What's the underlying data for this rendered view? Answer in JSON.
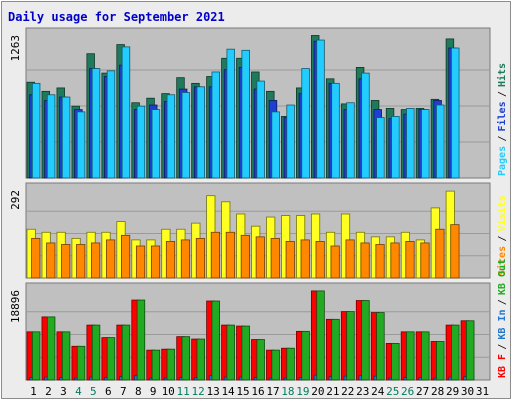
{
  "title": "Daily usage for September 2021",
  "colors": {
    "title": "#0000c8",
    "panel_bg": "#c0c0c0",
    "hits": "#1f7a5c",
    "files": "#1f3fd0",
    "pages": "#22ccff",
    "visits": "#ffff22",
    "sites": "#ff8800",
    "kb_f": "#ff0000",
    "kb_in": "#2277cc",
    "kb_out": "#22aa22"
  },
  "legends": {
    "top": [
      {
        "label": "Hits",
        "color": "#1f7a5c"
      },
      {
        "label": "Files",
        "color": "#1f3fd0"
      },
      {
        "label": "Pages",
        "color": "#22ccff"
      }
    ],
    "middle": [
      {
        "label": "Visits",
        "color": "#ffff22"
      },
      {
        "label": "Sites",
        "color": "#ff8800"
      }
    ],
    "bottom": [
      {
        "label": "KB Out",
        "color": "#22aa22"
      },
      {
        "label": "KB In",
        "color": "#2277cc"
      },
      {
        "label": "KB F",
        "color": "#ff0000"
      }
    ]
  },
  "chart_data": [
    {
      "type": "bar",
      "panel": "top",
      "ymax_label": "1263",
      "ylim": [
        0,
        1263
      ],
      "categories": [
        "1",
        "2",
        "3",
        "4",
        "5",
        "6",
        "7",
        "8",
        "9",
        "10",
        "11",
        "12",
        "13",
        "14",
        "15",
        "16",
        "17",
        "18",
        "19",
        "20",
        "21",
        "22",
        "23",
        "24",
        "25",
        "26",
        "27",
        "28",
        "29",
        "30",
        "31"
      ],
      "series": [
        {
          "name": "Hits",
          "values": [
            840,
            760,
            790,
            630,
            1090,
            920,
            1170,
            660,
            700,
            740,
            880,
            830,
            890,
            1050,
            1050,
            930,
            760,
            540,
            790,
            1250,
            870,
            650,
            970,
            680,
            610,
            600,
            610,
            690,
            1220,
            null,
            null
          ]
        },
        {
          "name": "Files",
          "values": [
            730,
            680,
            710,
            600,
            960,
            890,
            990,
            600,
            640,
            670,
            780,
            800,
            800,
            950,
            970,
            780,
            680,
            530,
            740,
            1200,
            830,
            600,
            870,
            600,
            520,
            560,
            600,
            680,
            1140,
            null,
            null
          ]
        },
        {
          "name": "Pages",
          "values": [
            830,
            730,
            710,
            580,
            960,
            940,
            1150,
            630,
            600,
            730,
            750,
            800,
            930,
            1130,
            1120,
            850,
            580,
            640,
            960,
            1210,
            830,
            660,
            920,
            530,
            540,
            610,
            600,
            640,
            1140,
            null,
            null
          ]
        }
      ]
    },
    {
      "type": "bar",
      "panel": "middle",
      "ymax_label": "292",
      "ylim": [
        0,
        292
      ],
      "categories": [
        "1",
        "2",
        "3",
        "4",
        "5",
        "6",
        "7",
        "8",
        "9",
        "10",
        "11",
        "12",
        "13",
        "14",
        "15",
        "16",
        "17",
        "18",
        "19",
        "20",
        "21",
        "22",
        "23",
        "24",
        "25",
        "26",
        "27",
        "28",
        "29",
        "30",
        "31"
      ],
      "series": [
        {
          "name": "Visits",
          "values": [
            160,
            150,
            150,
            130,
            150,
            150,
            185,
            125,
            125,
            160,
            160,
            180,
            270,
            250,
            210,
            170,
            200,
            205,
            205,
            210,
            150,
            210,
            150,
            135,
            135,
            150,
            125,
            230,
            285,
            null,
            null
          ]
        },
        {
          "name": "Sites",
          "values": [
            130,
            115,
            110,
            110,
            115,
            125,
            140,
            105,
            105,
            120,
            125,
            130,
            150,
            150,
            140,
            135,
            130,
            120,
            125,
            120,
            105,
            125,
            115,
            110,
            115,
            120,
            115,
            160,
            175,
            null,
            null
          ]
        }
      ]
    },
    {
      "type": "bar",
      "panel": "bottom",
      "ymax_label": "18896",
      "ylim": [
        0,
        18896
      ],
      "categories": [
        "1",
        "2",
        "3",
        "4",
        "5",
        "6",
        "7",
        "8",
        "9",
        "10",
        "11",
        "12",
        "13",
        "14",
        "15",
        "16",
        "17",
        "18",
        "19",
        "20",
        "21",
        "22",
        "23",
        "24",
        "25",
        "26",
        "27",
        "28",
        "29",
        "30",
        "31"
      ],
      "series": [
        {
          "name": "KB F",
          "values": [
            10000,
            13100,
            10000,
            7000,
            11400,
            8800,
            11400,
            16600,
            6200,
            6400,
            9000,
            8500,
            16400,
            11400,
            11200,
            8400,
            6200,
            6600,
            10100,
            18500,
            12600,
            14200,
            16500,
            14000,
            7600,
            10000,
            10000,
            8000,
            11400,
            12300,
            null
          ]
        },
        {
          "name": "KB In",
          "values": [
            500,
            600,
            500,
            400,
            600,
            500,
            700,
            900,
            400,
            400,
            500,
            500,
            900,
            600,
            600,
            500,
            400,
            400,
            500,
            1000,
            700,
            800,
            900,
            800,
            400,
            500,
            500,
            400,
            600,
            700,
            null
          ]
        },
        {
          "name": "KB Out",
          "values": [
            10000,
            13100,
            10000,
            7000,
            11400,
            8800,
            11400,
            16600,
            6200,
            6400,
            9000,
            8500,
            16400,
            11400,
            11200,
            8400,
            6200,
            6600,
            10100,
            18500,
            12600,
            14200,
            16500,
            14000,
            7600,
            10000,
            10000,
            8000,
            11400,
            12300,
            null
          ]
        }
      ]
    }
  ],
  "day_labels": [
    "1",
    "2",
    "3",
    "4",
    "5",
    "6",
    "7",
    "8",
    "9",
    "10",
    "11",
    "12",
    "13",
    "14",
    "15",
    "16",
    "17",
    "18",
    "19",
    "20",
    "21",
    "22",
    "23",
    "24",
    "25",
    "26",
    "27",
    "28",
    "29",
    "30",
    "31"
  ],
  "weekend_days": [
    "4",
    "5",
    "11",
    "12",
    "18",
    "19",
    "25",
    "26"
  ],
  "weekend_color": "#007a5e",
  "weekday_color": "#000000"
}
